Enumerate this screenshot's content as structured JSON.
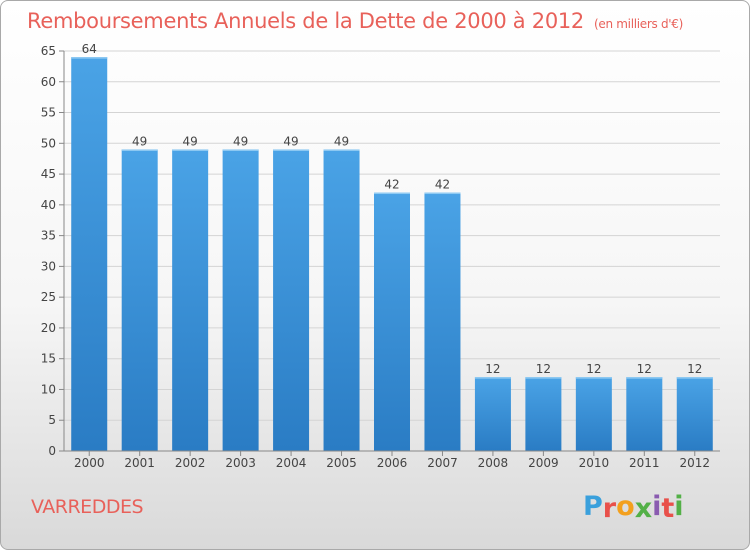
{
  "chart_data": {
    "type": "bar",
    "title": "Remboursements Annuels de la Dette de 2000 à 2012",
    "unit_note": "(en milliers d'€)",
    "categories": [
      "2000",
      "2001",
      "2002",
      "2003",
      "2004",
      "2005",
      "2006",
      "2007",
      "2008",
      "2009",
      "2010",
      "2011",
      "2012"
    ],
    "values": [
      64,
      49,
      49,
      49,
      49,
      49,
      42,
      42,
      12,
      12,
      12,
      12,
      12
    ],
    "ylim": [
      0,
      65
    ],
    "yticks": [
      0,
      5,
      10,
      15,
      20,
      25,
      30,
      35,
      40,
      45,
      50,
      55,
      60,
      65
    ],
    "grid": true,
    "bar_color": "#4aa3e6",
    "bar_color_dark": "#2a7cc4"
  },
  "commune": "VARREDDES",
  "brand": {
    "letters": [
      "P",
      "r",
      "o",
      "x",
      "i",
      "t",
      "i"
    ],
    "colors": [
      "#3aa0dc",
      "#e8504a",
      "#f3a01e",
      "#53b047",
      "#8a5bb0",
      "#e8504a",
      "#53b047"
    ]
  },
  "colors": {
    "title": "#e8615a"
  }
}
